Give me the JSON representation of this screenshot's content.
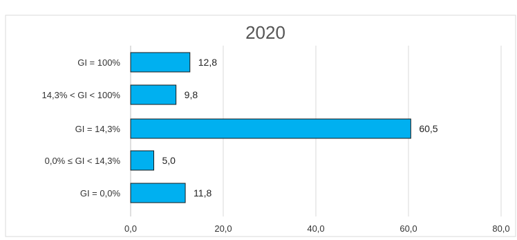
{
  "chart_data": {
    "type": "bar",
    "orientation": "horizontal",
    "title": "2020",
    "categories": [
      "GI = 100%",
      "14,3% < GI < 100%",
      "GI = 14,3%",
      "0,0% ≤ GI < 14,3%",
      "GI = 0,0%"
    ],
    "values": [
      12.8,
      9.8,
      60.5,
      5.0,
      11.8
    ],
    "data_labels": [
      "12,8",
      "9,8",
      "60,5",
      "5,0",
      "11,8"
    ],
    "x_ticks": [
      "0,0",
      "20,0",
      "40,0",
      "60,0",
      "80,0"
    ],
    "xlim": [
      0,
      80
    ],
    "grid": true,
    "legend": "none",
    "bar_color": "#00B0F0",
    "bar_edge_color": "#1a1a1a",
    "grid_color": "#D9D9D9"
  }
}
